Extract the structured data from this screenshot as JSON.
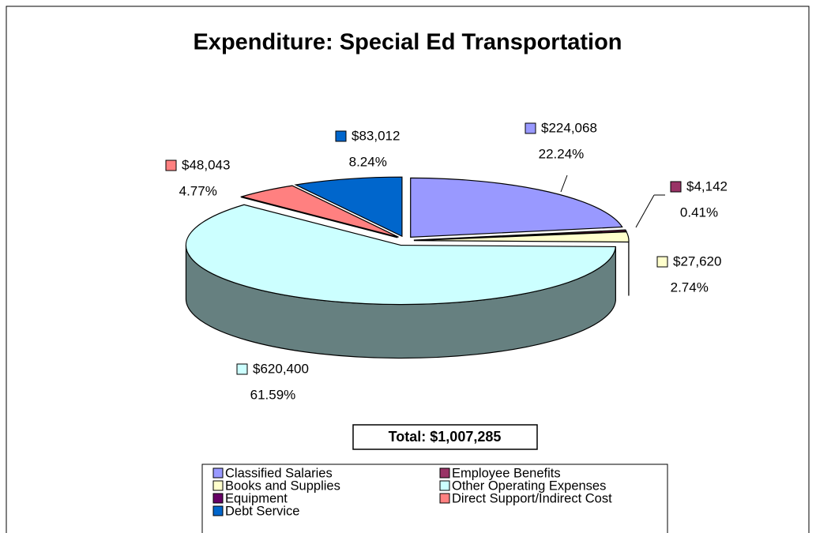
{
  "chart_data": {
    "type": "pie",
    "title": "Expenditure:  Special Ed Transportation",
    "categories": [
      "Classified Salaries",
      "Employee Benefits",
      "Books and Supplies",
      "Other Operating Expenses",
      "Equipment",
      "Direct Support/Indirect Cost",
      "Debt Service"
    ],
    "values": [
      224068,
      4142,
      27620,
      620400,
      0,
      48043,
      83012
    ],
    "value_labels": [
      "$224,068",
      "$4,142",
      "$27,620",
      "$620,400",
      null,
      "$48,043",
      "$83,012"
    ],
    "percents": [
      22.24,
      0.41,
      2.74,
      61.59,
      null,
      4.77,
      8.24
    ],
    "percent_labels": [
      "22.24%",
      "0.41%",
      "2.74%",
      "61.59%",
      null,
      "4.77%",
      "8.24%"
    ],
    "colors": [
      "#9999ff",
      "#993366",
      "#ffffcc",
      "#ccffff",
      "#660066",
      "#ff8080",
      "#0066cc"
    ],
    "annotation": "Total:  $1,007,285",
    "legend": "bottom"
  }
}
